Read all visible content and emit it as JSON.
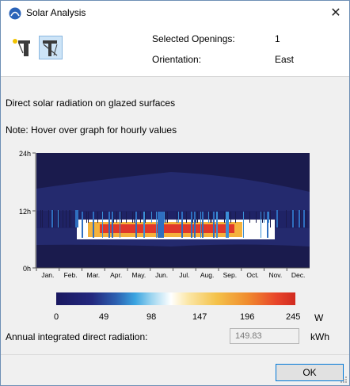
{
  "window": {
    "title": "Solar Analysis",
    "close_glyph": "✕"
  },
  "header": {
    "tools": [
      {
        "name": "sun-section-icon",
        "active": false
      },
      {
        "name": "opening-section-icon",
        "active": true
      }
    ],
    "selected_label": "Selected Openings:",
    "selected_value": "1",
    "orientation_label": "Orientation:",
    "orientation_value": "East"
  },
  "content": {
    "heading": "Direct solar radiation on glazed surfaces",
    "note": "Note: Hover over graph for hourly values"
  },
  "chart_data": {
    "type": "heatmap",
    "y_ticks": [
      "24h",
      "12h",
      "0h"
    ],
    "x_ticks": [
      "Jan.",
      "Feb.",
      "Mar.",
      "Apr.",
      "May.",
      "Jun.",
      "Jul.",
      "Aug.",
      "Sep.",
      "Oct.",
      "Nov.",
      "Dec."
    ],
    "colors": {
      "night": "#1a1b4d",
      "day": "#242a6e",
      "low": "#2f6fc0",
      "white": "#ffffff",
      "mid": "#f4b23c",
      "high": "#e0382a"
    }
  },
  "legend": {
    "ticks": [
      "0",
      "49",
      "98",
      "147",
      "196",
      "245"
    ],
    "unit": "W"
  },
  "annual": {
    "label": "Annual integrated direct radiation:",
    "value": "149.83",
    "unit": "kWh"
  },
  "footer": {
    "ok_label": "OK"
  }
}
